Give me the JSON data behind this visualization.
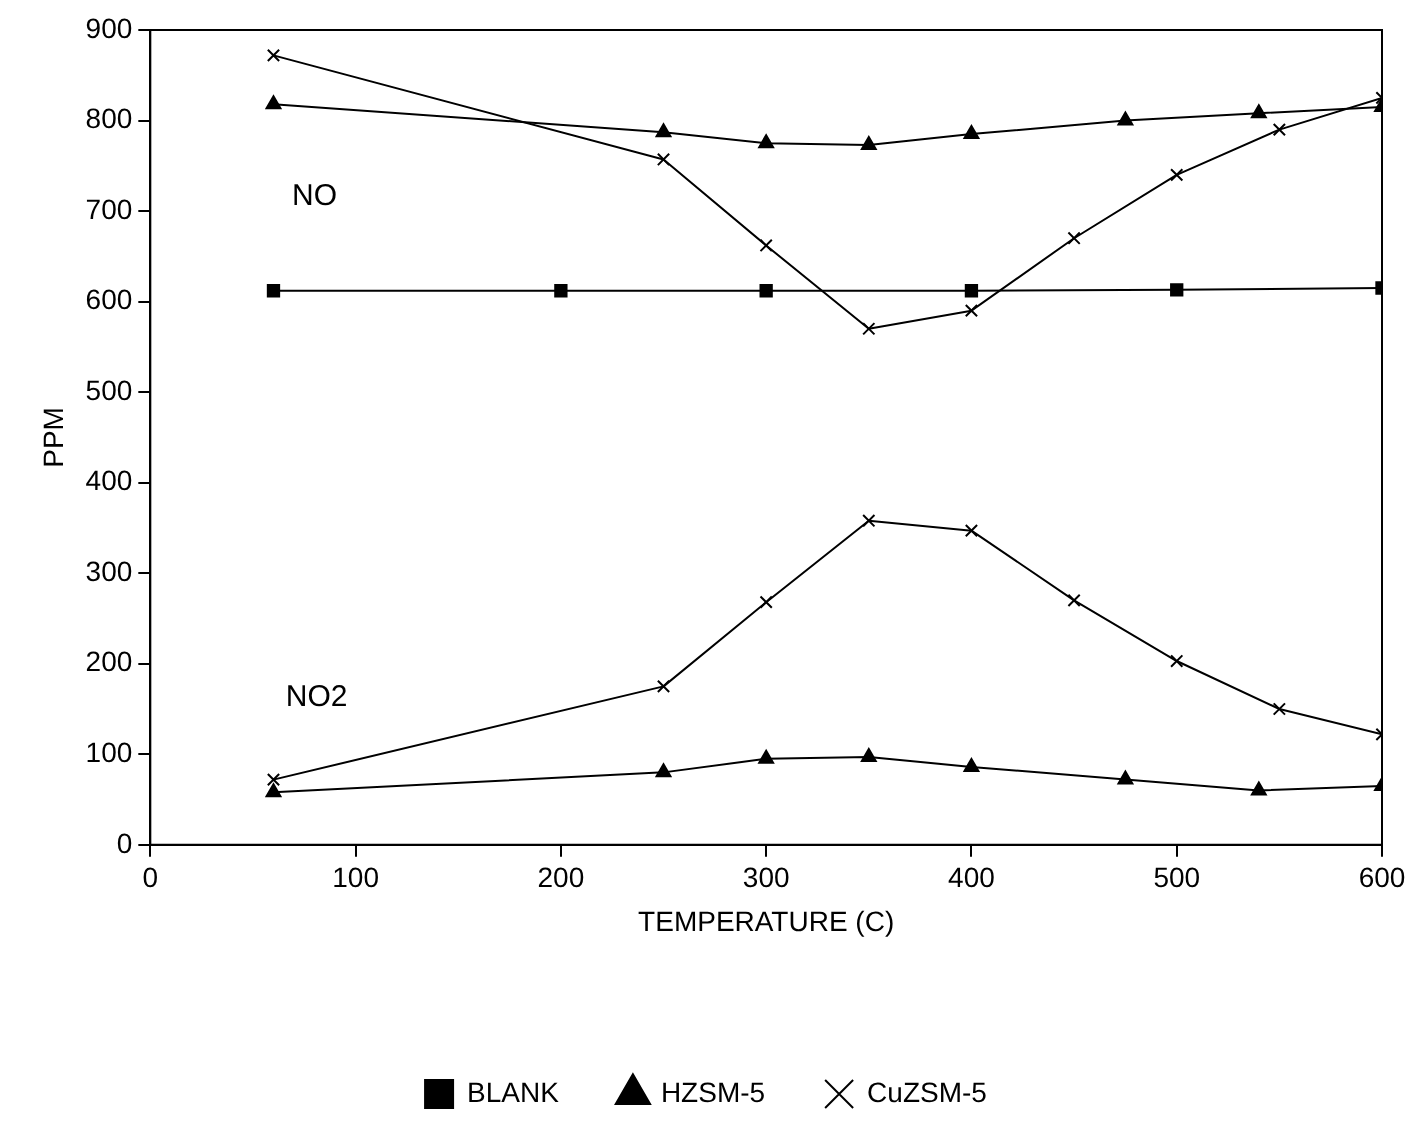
{
  "chart_data": {
    "type": "line",
    "xlabel": "TEMPERATURE (C)",
    "ylabel": "PPM",
    "xlim": [
      0,
      600
    ],
    "xticks": [
      0,
      100,
      200,
      300,
      400,
      500,
      600
    ],
    "ylim": [
      0,
      900
    ],
    "yticks": [
      0,
      100,
      200,
      300,
      400,
      500,
      600,
      700,
      800,
      900
    ],
    "grid": false,
    "legend": "bottom",
    "line_style": "solid",
    "annotations": [
      "NO",
      "NO2"
    ],
    "series": [
      {
        "name": "BLANK",
        "color": "#000000",
        "marker": "square",
        "x": [
          60,
          200,
          300,
          400,
          500,
          600
        ],
        "values": [
          612,
          612,
          612,
          612,
          613,
          615
        ]
      },
      {
        "name": "HZSM-5",
        "color": "#000000",
        "marker": "triangle",
        "x": [
          60,
          250,
          300,
          350,
          400,
          475,
          540,
          600
        ],
        "values": [
          818,
          787,
          775,
          773,
          785,
          800,
          808,
          815
        ]
      },
      {
        "name": "CuZSM-5",
        "color": "#000000",
        "marker": "cross",
        "x": [
          60,
          250,
          300,
          350,
          400,
          450,
          500,
          550,
          600
        ],
        "values": [
          872,
          757,
          662,
          570,
          590,
          670,
          740,
          790,
          825
        ]
      },
      {
        "color": "#000000",
        "marker": "triangle",
        "x": [
          60,
          250,
          300,
          350,
          400,
          475,
          540,
          600
        ],
        "values": [
          58,
          80,
          95,
          97,
          86,
          72,
          60,
          65
        ]
      },
      {
        "color": "#000000",
        "marker": "cross",
        "x": [
          60,
          250,
          300,
          350,
          400,
          450,
          500,
          550,
          600
        ],
        "values": [
          72,
          175,
          268,
          358,
          347,
          270,
          203,
          150,
          122
        ]
      }
    ]
  }
}
